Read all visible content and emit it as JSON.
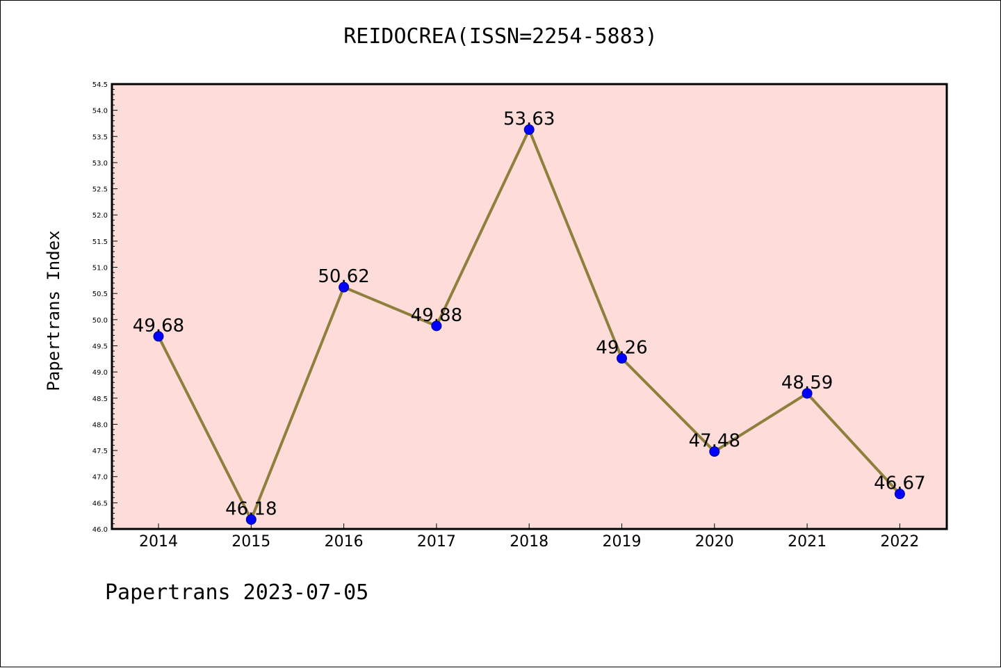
{
  "chart_data": {
    "type": "line",
    "title": "REIDOCREA(ISSN=2254-5883)",
    "ylabel": "Papertrans Index",
    "xlabel": "",
    "footer": "Papertrans 2023-07-05",
    "categories": [
      "2014",
      "2015",
      "2016",
      "2017",
      "2018",
      "2019",
      "2020",
      "2021",
      "2022"
    ],
    "series": [
      {
        "values": [
          49.68,
          46.18,
          50.62,
          49.88,
          53.63,
          49.26,
          47.48,
          48.59,
          46.67
        ],
        "labels": [
          "49.68",
          "46.18",
          "50.62",
          "49.88",
          "53.63",
          "49.26",
          "47.48",
          "48.59",
          "46.67"
        ]
      }
    ],
    "ylim": [
      46.0,
      54.5
    ],
    "yticks": [
      "46.0",
      "46.5",
      "47.0",
      "47.5",
      "48.0",
      "48.5",
      "49.0",
      "49.5",
      "50.0",
      "50.5",
      "51.0",
      "51.5",
      "52.0",
      "52.5",
      "53.0",
      "53.5",
      "54.0",
      "54.5"
    ],
    "grid": false,
    "colors": {
      "plot_background": "#fddcd9",
      "line": "#8f7f3c",
      "marker": "#0000ff"
    }
  }
}
